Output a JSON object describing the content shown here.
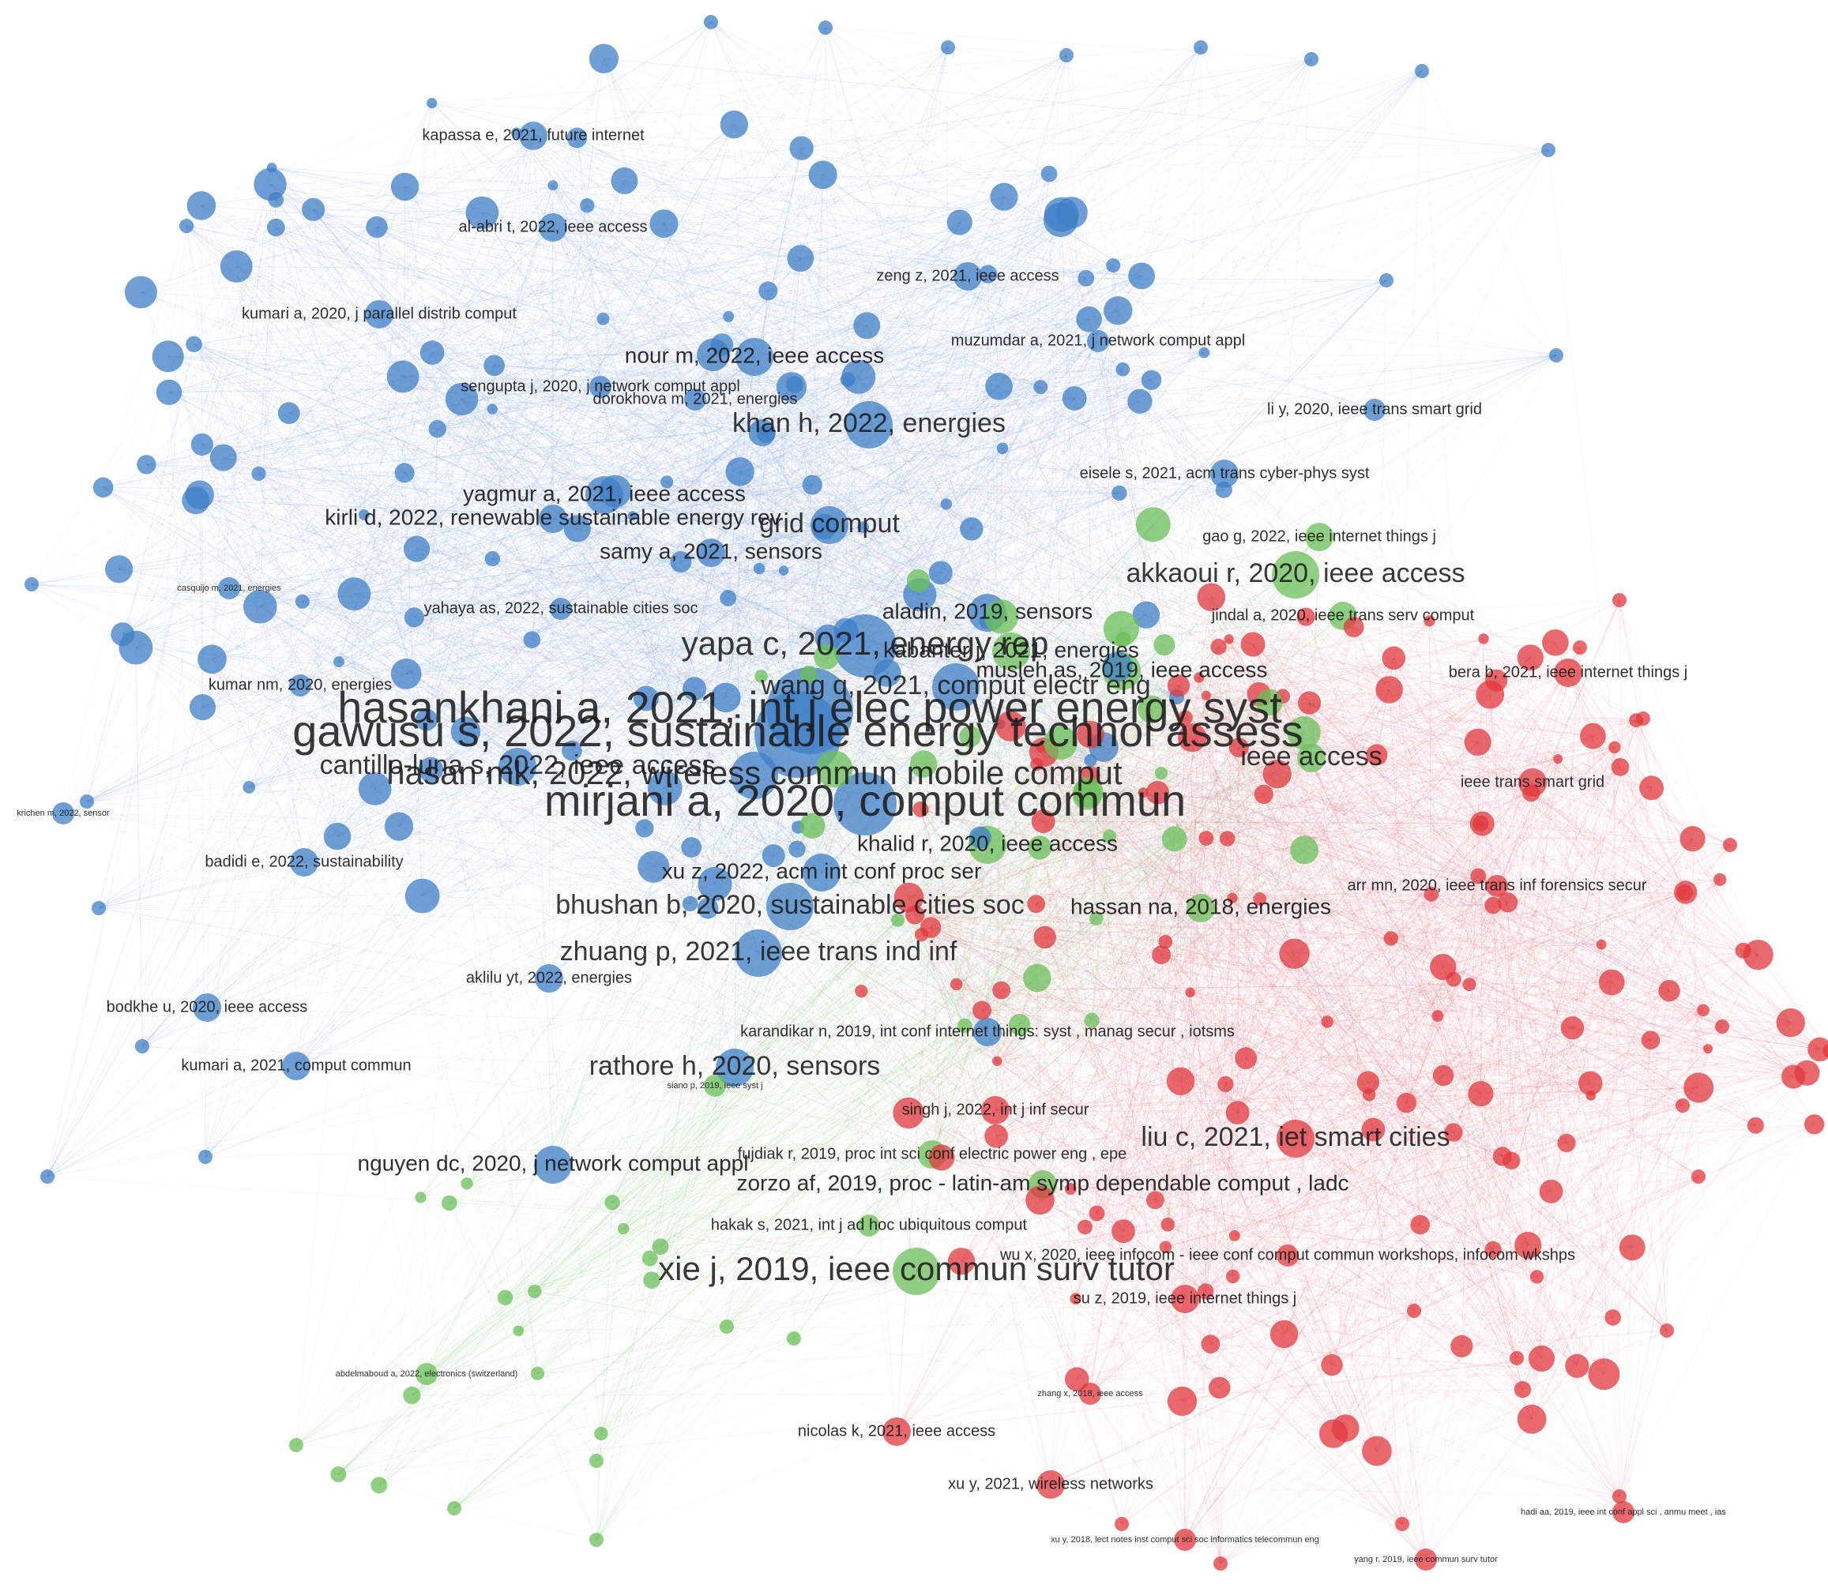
{
  "colors": {
    "blue": "#3f7fc6",
    "green": "#6bbf59",
    "red": "#e0383e",
    "label": "#1c1c1c"
  },
  "legend": [],
  "clusters": [
    "blue",
    "green",
    "red"
  ],
  "labeled_nodes": [
    {
      "label": "kapassa e, 2021, future internet",
      "cluster": "blue",
      "size": 3,
      "text": 1
    },
    {
      "label": "al-abri t, 2022, ieee access",
      "cluster": "blue",
      "size": 3,
      "text": 1
    },
    {
      "label": "kumari a, 2020, j parallel distrib comput",
      "cluster": "blue",
      "size": 3,
      "text": 1
    },
    {
      "label": "nour m, 2022, ieee access",
      "cluster": "blue",
      "size": 4,
      "text": 2
    },
    {
      "label": "zeng z, 2021, ieee access",
      "cluster": "blue",
      "size": 3,
      "text": 1
    },
    {
      "label": "sengupta j, 2020, j network comput appl",
      "cluster": "blue",
      "size": 2,
      "text": 1
    },
    {
      "label": "khan h, 2022, energies",
      "cluster": "blue",
      "size": 5,
      "text": 3
    },
    {
      "label": "yagmur a, 2021, ieee access",
      "cluster": "blue",
      "size": 4,
      "text": 2
    },
    {
      "label": "kirli d, 2022, renewable sustainable energy rev",
      "cluster": "blue",
      "size": 3,
      "text": 2
    },
    {
      "label": "grid comput",
      "cluster": "blue",
      "size": 4,
      "text": 3
    },
    {
      "label": "samy a, 2021, sensors",
      "cluster": "blue",
      "size": 3,
      "text": 2
    },
    {
      "label": "yahaya as, 2022, sustainable cities soc",
      "cluster": "blue",
      "size": 2,
      "text": 1
    },
    {
      "label": "aladin, 2019, sensors",
      "cluster": "blue",
      "size": 4,
      "text": 2
    },
    {
      "label": "yapa c, 2021, energy rep",
      "cluster": "blue",
      "size": 6,
      "text": 4
    },
    {
      "label": "kumar nm, 2020, energies",
      "cluster": "blue",
      "size": 2,
      "text": 1
    },
    {
      "label": "gawusu s, 2022, sustainable energy technol assess",
      "cluster": "blue",
      "size": 7,
      "text": 5
    },
    {
      "label": "hasankhani a, 2021, int j elec power energy syst",
      "cluster": "blue",
      "size": 7,
      "text": 5
    },
    {
      "label": "cantillo-luna s, 2022, ieee access",
      "cluster": "blue",
      "size": 4,
      "text": 3
    },
    {
      "label": "hasan mk, 2022, wireless commun mobile comput",
      "cluster": "blue",
      "size": 5,
      "text": 4
    },
    {
      "label": "wang q, 2021, comput electr eng",
      "cluster": "blue",
      "size": 5,
      "text": 3
    },
    {
      "label": "mirjani a, 2020, comput commun",
      "cluster": "blue",
      "size": 6,
      "text": 5
    },
    {
      "label": "badidi e, 2022, sustainability",
      "cluster": "blue",
      "size": 3,
      "text": 1
    },
    {
      "label": "xu z, 2022, acm int conf proc ser",
      "cluster": "blue",
      "size": 4,
      "text": 2
    },
    {
      "label": "bhushan b, 2020, sustainable cities soc",
      "cluster": "blue",
      "size": 5,
      "text": 3
    },
    {
      "label": "zhuang p, 2021, ieee trans ind inf",
      "cluster": "blue",
      "size": 5,
      "text": 3
    },
    {
      "label": "aklilu yt, 2022, energies",
      "cluster": "blue",
      "size": 3,
      "text": 1
    },
    {
      "label": "bodkhe u, 2020, ieee access",
      "cluster": "blue",
      "size": 3,
      "text": 1
    },
    {
      "label": "kumari a, 2021, comput commun",
      "cluster": "blue",
      "size": 3,
      "text": 1
    },
    {
      "label": "karandikar n, 2019, int conf internet things: syst , manag secur , iotsms",
      "cluster": "blue",
      "size": 3,
      "text": 1
    },
    {
      "label": "rathore h, 2020, sensors",
      "cluster": "blue",
      "size": 4,
      "text": 3
    },
    {
      "label": "nguyen dc, 2020, j network comput appl",
      "cluster": "blue",
      "size": 4,
      "text": 2
    },
    {
      "label": "eisele s, 2021, acm trans cyber-phys syst",
      "cluster": "blue",
      "size": 3,
      "text": 1
    },
    {
      "label": "gao g, 2022, ieee internet things j",
      "cluster": "green",
      "size": 3,
      "text": 1
    },
    {
      "label": "akkaoui r, 2020, ieee access",
      "cluster": "green",
      "size": 5,
      "text": 3
    },
    {
      "label": "jindal a, 2020, ieee trans serv comput",
      "cluster": "green",
      "size": 3,
      "text": 1
    },
    {
      "label": "kabanter j, 2021, energies",
      "cluster": "green",
      "size": 4,
      "text": 2
    },
    {
      "label": "musleh as, 2019, ieee access",
      "cluster": "green",
      "size": 4,
      "text": 2
    },
    {
      "label": "khalid r, 2020, ieee access",
      "cluster": "green",
      "size": 4,
      "text": 2
    },
    {
      "label": "hassan na, 2018, energies",
      "cluster": "green",
      "size": 3,
      "text": 2
    },
    {
      "label": "fujdiak r, 2019, proc int sci conf electric power eng , epe",
      "cluster": "green",
      "size": 3,
      "text": 1
    },
    {
      "label": "zorzo af, 2019, proc - latin-am symp dependable comput , ladc",
      "cluster": "green",
      "size": 3,
      "text": 2
    },
    {
      "label": "hakak s, 2021, int j ad hoc ubiquitous comput",
      "cluster": "green",
      "size": 2,
      "text": 1
    },
    {
      "label": "xie j, 2019, ieee commun surv tutor",
      "cluster": "green",
      "size": 5,
      "text": 4
    },
    {
      "label": "bera b, 2021, ieee internet things j",
      "cluster": "red",
      "size": 3,
      "text": 1
    },
    {
      "label": "ieee trans smart grid",
      "cluster": "red",
      "size": 3,
      "text": 1
    },
    {
      "label": "liu c, 2021, iet smart cities",
      "cluster": "red",
      "size": 4,
      "text": 3
    },
    {
      "label": "su z, 2019, ieee internet things j",
      "cluster": "red",
      "size": 3,
      "text": 1
    },
    {
      "label": "nicolas k, 2021, ieee access",
      "cluster": "red",
      "size": 3,
      "text": 1
    },
    {
      "label": "xu y, 2021, wireless networks",
      "cluster": "red",
      "size": 3,
      "text": 1
    },
    {
      "label": "zhang x, 2018, ieee access",
      "cluster": "red",
      "size": 2,
      "text": 0
    },
    {
      "label": "singh j, 2022, int j inf secur",
      "cluster": "red",
      "size": 3,
      "text": 1
    },
    {
      "label": "yang r, 2019, ieee commun surv tutor",
      "cluster": "red",
      "size": 2,
      "text": 0
    },
    {
      "label": "hadi aa, 2019, ieee int conf appl sci , anmu meet , ias",
      "cluster": "red",
      "size": 2,
      "text": 0
    },
    {
      "label": "xu y, 2018, lect notes inst comput sci soc informatics telecommun eng",
      "cluster": "red",
      "size": 2,
      "text": 0
    },
    {
      "label": "abdelmaboud a, 2022, electronics (switzerland)",
      "cluster": "green",
      "size": 2,
      "text": 0
    },
    {
      "label": "casquijo m, 2021, energies",
      "cluster": "blue",
      "size": 2,
      "text": 0
    },
    {
      "label": "krichen m, 2022, sensor",
      "cluster": "blue",
      "size": 2,
      "text": 0
    },
    {
      "label": "dorokhova m, 2021, energies",
      "cluster": "blue",
      "size": 2,
      "text": 1
    },
    {
      "label": "muzumdar a, 2021, j network comput appl",
      "cluster": "blue",
      "size": 2,
      "text": 1
    },
    {
      "label": "li y, 2020, ieee trans smart grid",
      "cluster": "blue",
      "size": 2,
      "text": 1
    },
    {
      "label": "siano p, 2019, ieee syst j",
      "cluster": "green",
      "size": 2,
      "text": 0
    },
    {
      "label": "wu x, 2020, ieee infocom - ieee conf comput commun workshops, infocom wkshps",
      "cluster": "red",
      "size": 2,
      "text": 1
    },
    {
      "label": "arr mn, 2020, ieee trans inf forensics secur",
      "cluster": "red",
      "size": 2,
      "text": 1
    },
    {
      "label": "ieee access",
      "cluster": "green",
      "size": 3,
      "text": 3
    }
  ]
}
